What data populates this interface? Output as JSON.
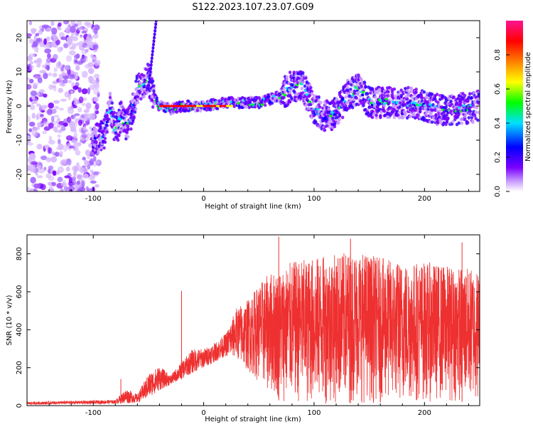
{
  "title": "S122.2023.107.23.07.G09",
  "chart_data": [
    {
      "type": "heatmap",
      "xlabel": "Height of straight line (km)",
      "ylabel": "Frequency (Hz)",
      "xlim": [
        -160,
        250
      ],
      "ylim": [
        -25,
        25
      ],
      "xticks": [
        -100,
        0,
        100,
        200
      ],
      "yticks": [
        -20,
        -10,
        0,
        10,
        20
      ],
      "colorbar": {
        "label": "Normalized spectral amplitude",
        "ticks": [
          "0.0",
          "0.2",
          "0.4",
          "0.6",
          "0.8"
        ],
        "range": [
          0,
          1
        ],
        "colors": [
          "#ffffff",
          "#7a00ff",
          "#0000ff",
          "#00e0ff",
          "#00ff00",
          "#ffff00",
          "#ff7f00",
          "#ff0000",
          "#ff1493"
        ]
      },
      "ridge": {
        "x": [
          -160,
          -130,
          -110,
          -100,
          -90,
          -85,
          -80,
          -75,
          -70,
          -65,
          -60,
          -55,
          -50,
          -45,
          -40,
          -30,
          -20,
          0,
          20,
          40,
          50,
          60,
          70,
          80,
          90,
          100,
          110,
          120,
          130,
          140,
          150,
          170,
          190,
          210,
          230,
          250
        ],
        "y": [
          0,
          0,
          -3,
          -10,
          -8,
          0,
          -8,
          -3,
          -6,
          -2,
          5,
          6,
          8,
          3,
          0,
          -1,
          0,
          0,
          1,
          1,
          1,
          2,
          3,
          6,
          6,
          -1,
          -3,
          -2,
          3,
          5,
          1,
          1,
          1,
          -1,
          -1,
          0
        ]
      }
    },
    {
      "type": "line",
      "xlabel": "Height of straight line (km)",
      "ylabel": "SNR (10 * v/v)",
      "xlim": [
        -160,
        250
      ],
      "ylim": [
        0,
        900
      ],
      "xticks": [
        -100,
        0,
        100,
        200
      ],
      "yticks": [
        0,
        200,
        400,
        600,
        800
      ],
      "color": "#ee3030",
      "envelope": {
        "x": [
          -160,
          -120,
          -80,
          -70,
          -60,
          -50,
          -40,
          -30,
          -20,
          -10,
          0,
          10,
          20,
          30,
          40,
          50,
          60,
          70,
          80,
          100,
          120,
          140,
          160,
          180,
          200,
          220,
          250
        ],
        "low": [
          5,
          8,
          10,
          12,
          15,
          40,
          80,
          110,
          140,
          170,
          200,
          230,
          260,
          250,
          180,
          120,
          60,
          20,
          10,
          5,
          10,
          15,
          10,
          10,
          20,
          20,
          20
        ],
        "high": [
          20,
          25,
          30,
          90,
          60,
          170,
          210,
          160,
          230,
          300,
          300,
          330,
          380,
          520,
          560,
          640,
          700,
          720,
          760,
          780,
          800,
          820,
          780,
          760,
          760,
          740,
          720
        ]
      },
      "spikes": [
        {
          "x": -75,
          "y": 140
        },
        {
          "x": -20,
          "y": 605
        },
        {
          "x": 68,
          "y": 890
        },
        {
          "x": 133,
          "y": 880
        },
        {
          "x": 234,
          "y": 860
        }
      ]
    }
  ]
}
